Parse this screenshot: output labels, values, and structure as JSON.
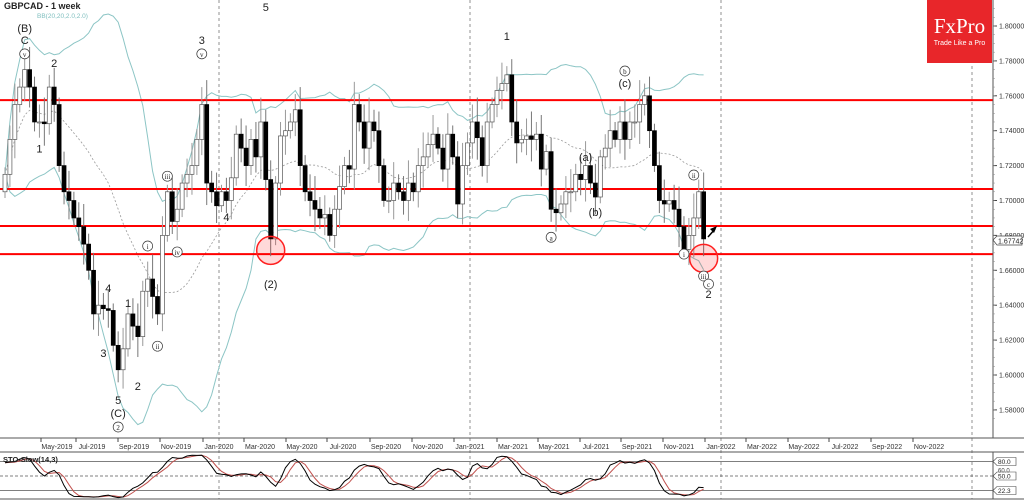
{
  "header": {
    "title": "GBPCAD - 1 week",
    "indicator": "BB(20,20,2.0,2.0)"
  },
  "logo": {
    "brand": "FxPro",
    "tagline": "Trade Like a Pro",
    "color": "#e8262a"
  },
  "chart_data": {
    "type": "candlestick",
    "symbol": "GBPCAD",
    "timeframe": "1 week",
    "ylim": [
      1.565,
      1.815
    ],
    "y_ticks": [
      "1.80000",
      "1.78000",
      "1.76000",
      "1.74000",
      "1.72000",
      "1.70000",
      "1.68000",
      "1.66000",
      "1.64000",
      "1.62000",
      "1.60000",
      "1.58000"
    ],
    "x_ticks": [
      "May-2019",
      "Jul-2019",
      "Sep-2019",
      "Nov-2019",
      "Jan-2020",
      "Mar-2020",
      "May-2020",
      "Jul-2020",
      "Sep-2020",
      "Nov-2020",
      "Jan-2021",
      "Mar-2021",
      "May-2021",
      "Jul-2021",
      "Sep-2021",
      "Nov-2021",
      "Jan-2022",
      "Mar-2022",
      "May-2022",
      "Jul-2022",
      "Sep-2022",
      "Nov-2022"
    ],
    "current_price": "1.67742",
    "close": [
      1.715,
      1.735,
      1.755,
      1.765,
      1.775,
      1.765,
      1.745,
      1.745,
      1.744,
      1.765,
      1.755,
      1.72,
      1.705,
      1.7,
      1.69,
      1.685,
      1.675,
      1.66,
      1.635,
      1.64,
      1.638,
      1.637,
      1.617,
      1.603,
      1.615,
      1.635,
      1.628,
      1.622,
      1.648,
      1.655,
      1.645,
      1.635,
      1.68,
      1.705,
      1.688,
      1.695,
      1.71,
      1.715,
      1.72,
      1.735,
      1.755,
      1.71,
      1.705,
      1.697,
      1.705,
      1.7,
      1.713,
      1.738,
      1.73,
      1.72,
      1.735,
      1.725,
      1.745,
      1.712,
      1.678,
      1.71,
      1.737,
      1.74,
      1.745,
      1.752,
      1.72,
      1.705,
      1.7,
      1.695,
      1.69,
      1.692,
      1.68,
      1.695,
      1.708,
      1.72,
      1.718,
      1.755,
      1.745,
      1.73,
      1.745,
      1.74,
      1.72,
      1.7,
      1.7,
      1.71,
      1.705,
      1.7,
      1.71,
      1.705,
      1.72,
      1.725,
      1.732,
      1.738,
      1.73,
      1.718,
      1.738,
      1.725,
      1.698,
      1.72,
      1.733,
      1.745,
      1.736,
      1.72,
      1.745,
      1.755,
      1.763,
      1.767,
      1.772,
      1.745,
      1.733,
      1.735,
      1.737,
      1.735,
      1.738,
      1.718,
      1.728,
      1.695,
      1.693,
      1.698,
      1.705,
      1.705,
      1.715,
      1.712,
      1.72,
      1.71,
      1.702,
      1.725,
      1.73,
      1.74,
      1.735,
      1.745,
      1.735,
      1.745,
      1.745,
      1.755,
      1.76,
      1.74,
      1.72,
      1.7,
      1.698,
      1.7,
      1.695,
      1.685,
      1.672,
      1.68,
      1.69,
      1.705,
      1.678
    ],
    "horizontal_levels": [
      1.7575,
      1.7066,
      1.6854,
      1.6693
    ],
    "level_color": "#ff0000",
    "highlight_circles": [
      {
        "week": 54,
        "price": 1.6714
      },
      {
        "week": 142,
        "price": 1.6668
      }
    ],
    "wave_labels": [
      {
        "text": "(B)",
        "week": 4,
        "price": 1.7966,
        "circled": false
      },
      {
        "text": "C",
        "week": 4,
        "price": 1.7897,
        "circled": false
      },
      {
        "text": "v",
        "week": 4,
        "price": 1.7823,
        "circled": true
      },
      {
        "text": "2",
        "week": 10,
        "price": 1.7765,
        "circled": false
      },
      {
        "text": "1",
        "week": 7,
        "price": 1.7275,
        "circled": false
      },
      {
        "text": "4",
        "week": 21,
        "price": 1.6476,
        "circled": false
      },
      {
        "text": "3",
        "week": 20,
        "price": 1.6104,
        "circled": false
      },
      {
        "text": "5",
        "week": 23,
        "price": 1.5834,
        "circled": false
      },
      {
        "text": "(C)",
        "week": 23,
        "price": 1.576,
        "circled": false
      },
      {
        "text": "2",
        "week": 23,
        "price": 1.5685,
        "circled": true
      },
      {
        "text": "1",
        "week": 25,
        "price": 1.639,
        "circled": false
      },
      {
        "text": "2",
        "week": 27,
        "price": 1.5914,
        "circled": false
      },
      {
        "text": "i",
        "week": 29,
        "price": 1.6722,
        "circled": true
      },
      {
        "text": "ii",
        "week": 31,
        "price": 1.6148,
        "circled": true
      },
      {
        "text": "iii",
        "week": 33,
        "price": 1.7122,
        "circled": true
      },
      {
        "text": "iv",
        "week": 35,
        "price": 1.6688,
        "circled": true
      },
      {
        "text": "3",
        "week": 40,
        "price": 1.7897,
        "circled": false
      },
      {
        "text": "v",
        "week": 40,
        "price": 1.7823,
        "circled": true
      },
      {
        "text": "4",
        "week": 45,
        "price": 1.6882,
        "circled": false
      },
      {
        "text": "5",
        "week": 53,
        "price": 1.8086,
        "circled": false
      },
      {
        "text": "(2)",
        "week": 54,
        "price": 1.65,
        "circled": false
      },
      {
        "text": "1",
        "week": 102,
        "price": 1.792,
        "circled": false
      },
      {
        "text": "b",
        "week": 126,
        "price": 1.7725,
        "circled": true
      },
      {
        "text": "(c)",
        "week": 126,
        "price": 1.765,
        "circled": false
      },
      {
        "text": "(a)",
        "week": 118,
        "price": 1.7225,
        "circled": false
      },
      {
        "text": "(b)",
        "week": 120,
        "price": 1.691,
        "circled": false
      },
      {
        "text": "a",
        "week": 111,
        "price": 1.6772,
        "circled": true
      },
      {
        "text": "ii",
        "week": 140,
        "price": 1.7129,
        "circled": true
      },
      {
        "text": "i",
        "week": 138,
        "price": 1.6676,
        "circled": true
      },
      {
        "text": "iii",
        "week": 142,
        "price": 1.655,
        "circled": true
      },
      {
        "text": "c",
        "week": 143,
        "price": 1.6504,
        "circled": true
      },
      {
        "text": "2",
        "week": 143,
        "price": 1.6441,
        "circled": false
      }
    ],
    "oscillator": {
      "title": "STO-Slow(14,3)",
      "levels": [
        80,
        50,
        20
      ],
      "level_labels": [
        "80.0",
        "60.0",
        "50.0",
        "22.3"
      ],
      "k_color": "#000000",
      "d_color": "#c0504d"
    },
    "band_color": "#8cc5c5"
  }
}
